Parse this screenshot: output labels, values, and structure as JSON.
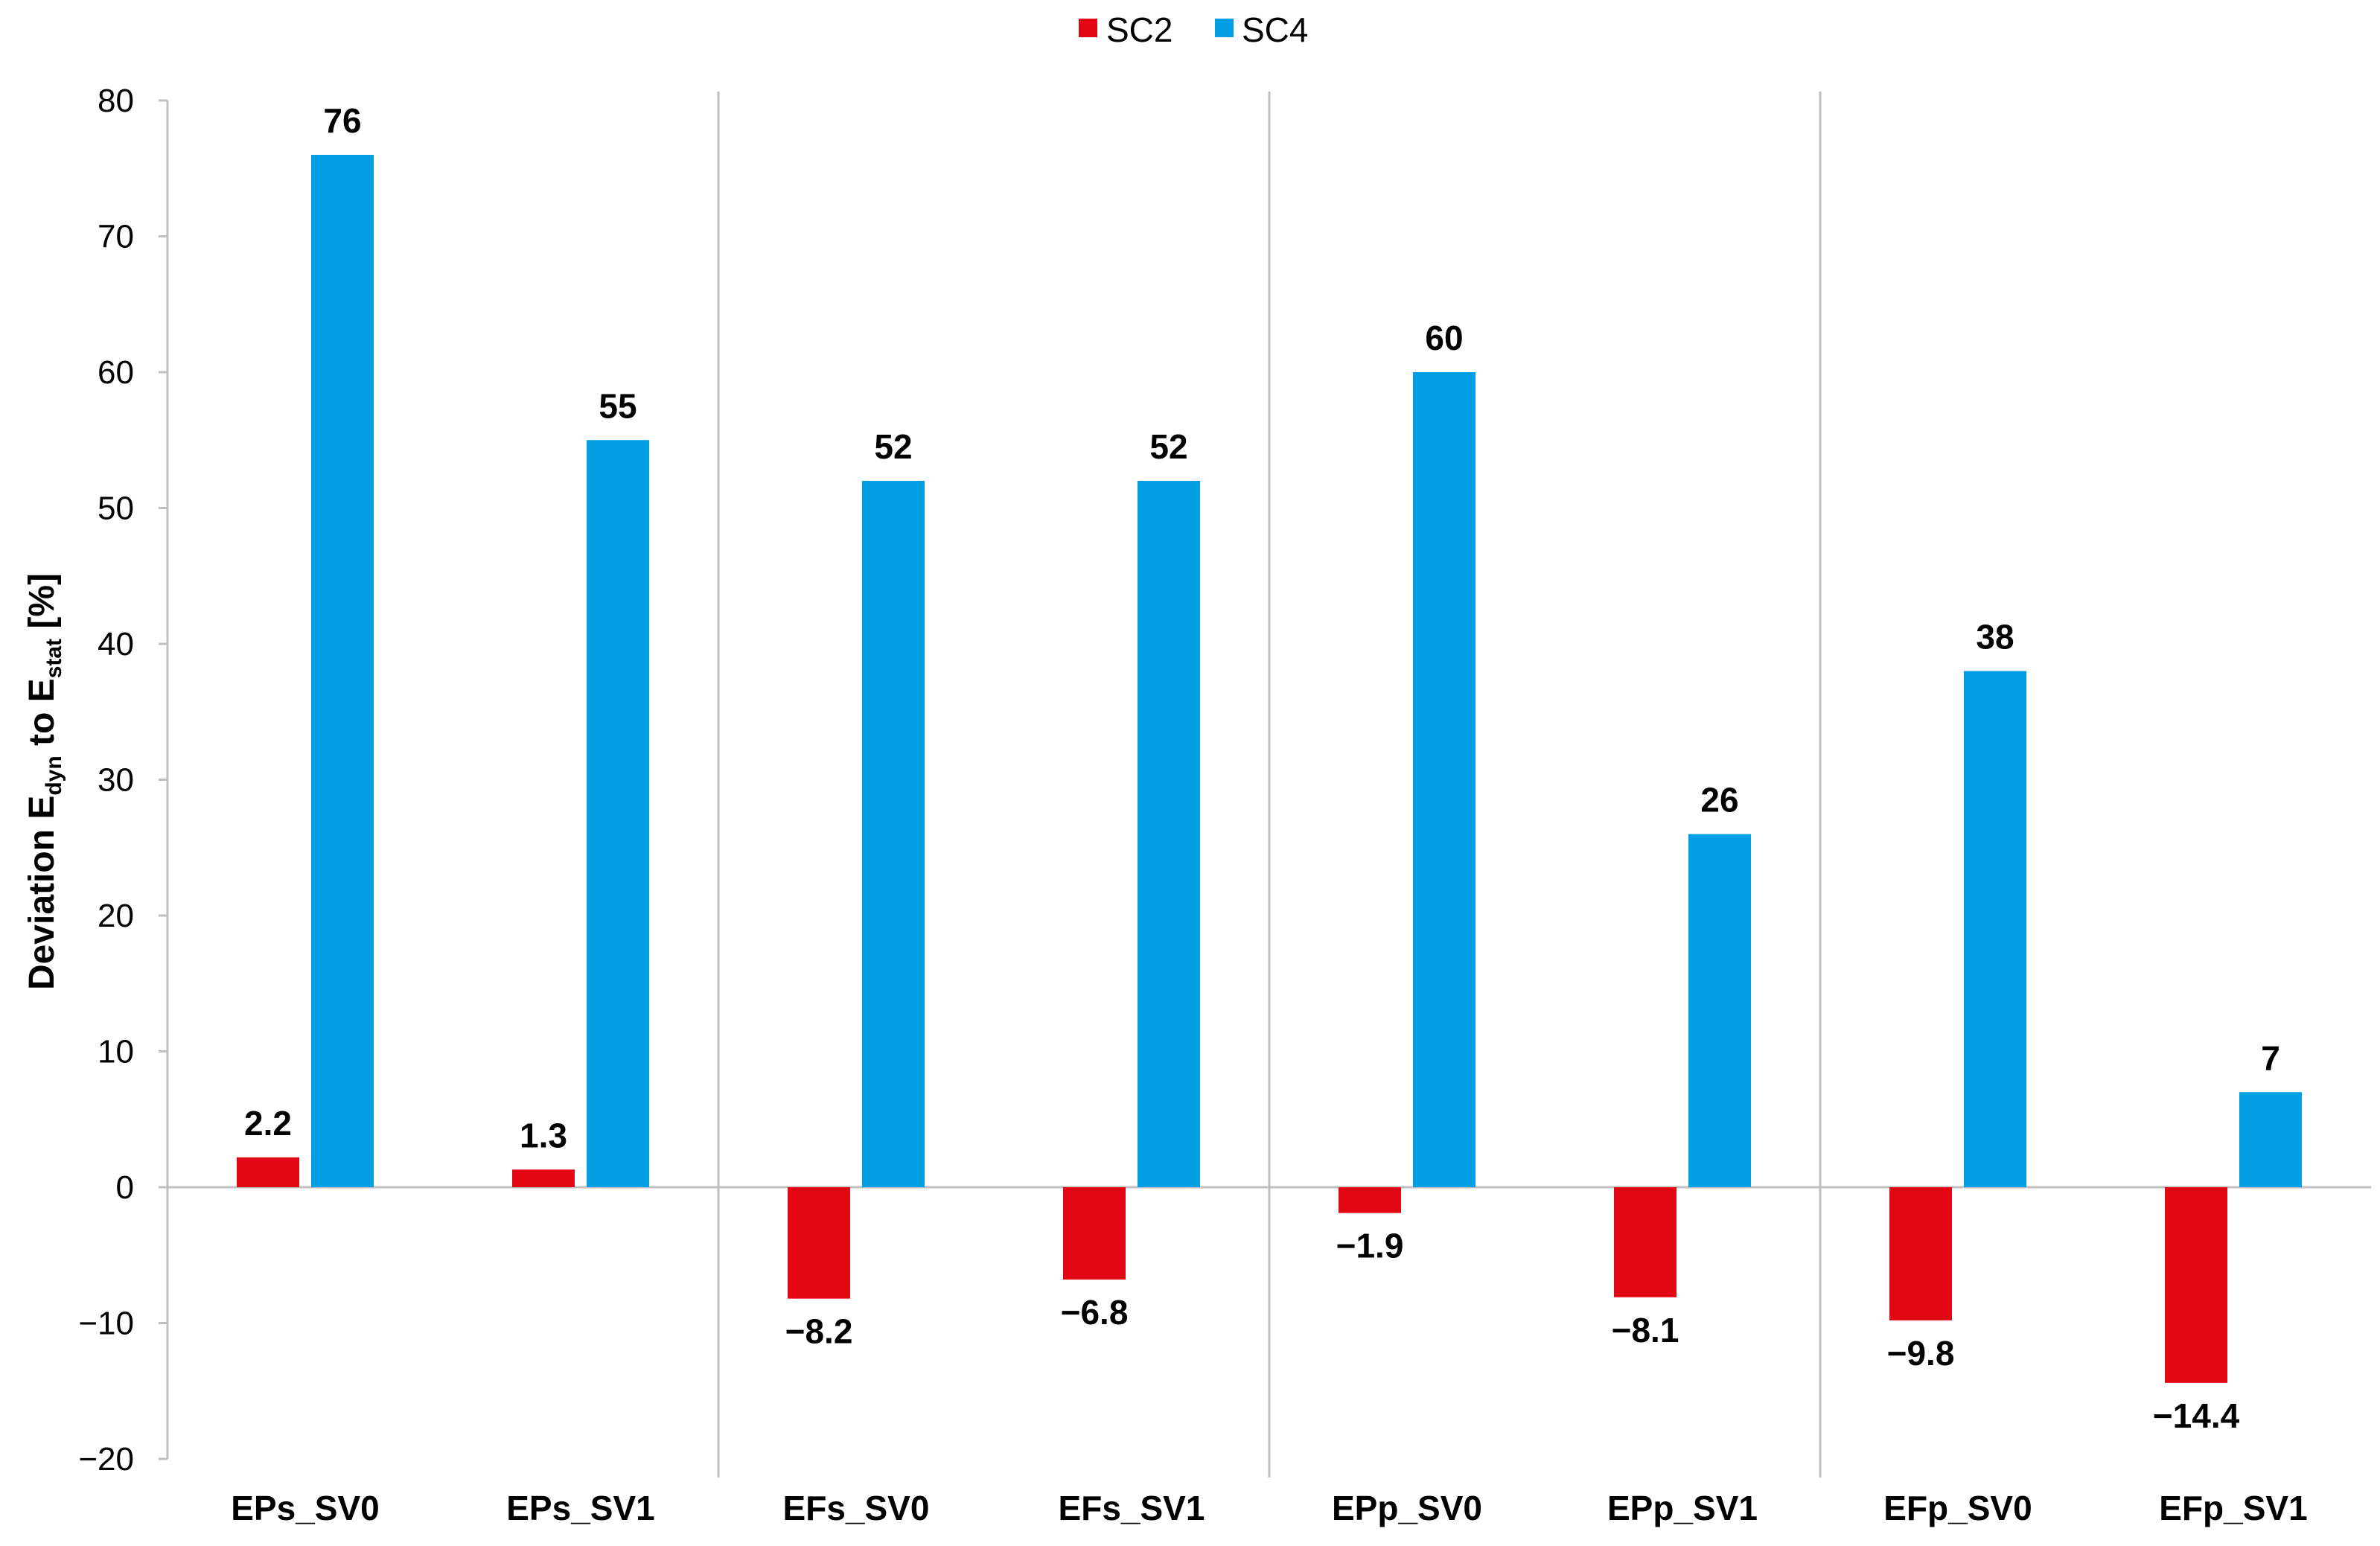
{
  "chart_data": {
    "type": "bar",
    "title": "",
    "xlabel": "",
    "ylabel": {
      "prefix": "Deviation E",
      "sub1": "dyn",
      "middle": " to E",
      "sub2": "stat",
      "suffix": " [%]"
    },
    "ylim": [
      -20,
      80
    ],
    "yticks": [
      -20,
      -10,
      0,
      10,
      20,
      30,
      40,
      50,
      60,
      70,
      80
    ],
    "ytick_labels": [
      "−20",
      "−10",
      "0",
      "10",
      "20",
      "30",
      "40",
      "50",
      "60",
      "70",
      "80"
    ],
    "categories": [
      "EPs_SV0",
      "EPs_SV1",
      "EFs_SV0",
      "EFs_SV1",
      "EPp_SV0",
      "EPp_SV1",
      "EFp_SV0",
      "EFp_SV1"
    ],
    "group_separators_after": [
      1,
      3,
      5
    ],
    "legend_position": "top-center",
    "grid": false,
    "series": [
      {
        "name": "SC2",
        "color": "#e30613",
        "values": [
          2.2,
          1.3,
          -8.2,
          -6.8,
          -1.9,
          -8.1,
          -9.8,
          -14.4
        ],
        "labels": [
          "2.2",
          "1.3",
          "−8.2",
          "−6.8",
          "−1.9",
          "−8.1",
          "−9.8",
          "−14.4"
        ]
      },
      {
        "name": "SC4",
        "color": "#009fe3",
        "values": [
          76,
          55,
          52,
          52,
          60,
          26,
          38,
          7
        ],
        "labels": [
          "76",
          "55",
          "52",
          "52",
          "60",
          "26",
          "38",
          "7"
        ]
      }
    ]
  }
}
